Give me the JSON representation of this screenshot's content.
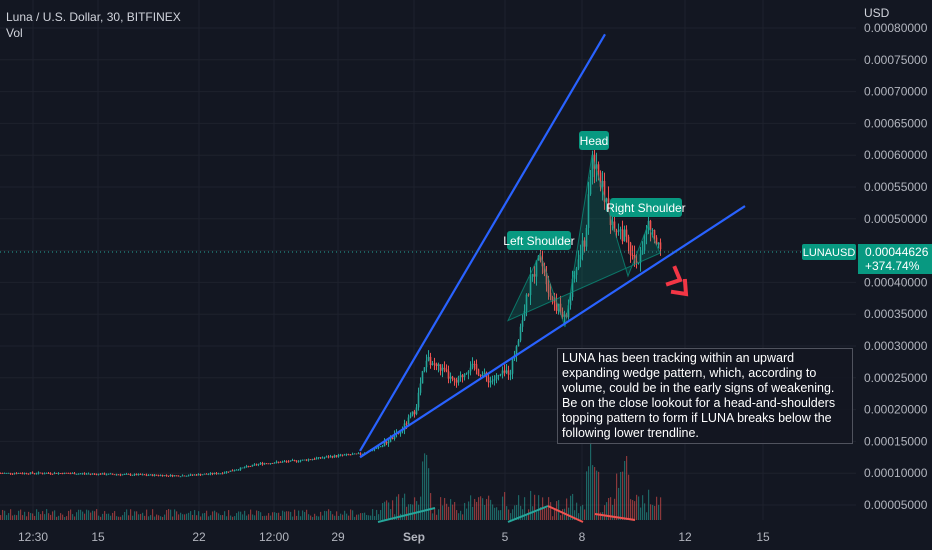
{
  "header": {
    "symbol_line": "Luna / U.S. Dollar, 30, BITFINEX",
    "sub_line": "Vol",
    "currency": "USD"
  },
  "annotation_text": "LUNA has been tracking within an upward expanding wedge pattern, which, according to volume, could be in the early signs of weakening. Be on the close lookout for a head-and-shoulders topping pattern to form if LUNA breaks below the following lower trendline.",
  "price_tag": {
    "symbol": "LUNAUSD",
    "price": "0.00044626",
    "change": "+374.74%"
  },
  "colors": {
    "background": "#131722",
    "up": "#26a69a",
    "down": "#ef5350",
    "trendline": "#2962ff",
    "label_bg": "#089981",
    "arrow": "#f23645"
  },
  "chart_data": {
    "type": "candlestick",
    "y_axis": {
      "range": [
        2e-05,
        0.00081
      ],
      "ticks": [
        "0.00080000",
        "0.00075000",
        "0.00070000",
        "0.00065000",
        "0.00060000",
        "0.00055000",
        "0.00050000",
        "0.00045000",
        "0.00040000",
        "0.00035000",
        "0.00030000",
        "0.00025000",
        "0.00020000",
        "0.00015000",
        "0.00010000",
        "0.00005000"
      ]
    },
    "x_axis": {
      "ticks": [
        "12:30",
        "15",
        "22",
        "12:00",
        "29",
        "Sep",
        "5",
        "8",
        "12",
        "15"
      ]
    },
    "price_path": [
      [
        0,
        0.0001
      ],
      [
        60,
        0.0001
      ],
      [
        120,
        9.8e-05
      ],
      [
        180,
        9.6e-05
      ],
      [
        220,
        0.0001
      ],
      [
        260,
        0.000115
      ],
      [
        300,
        0.00012
      ],
      [
        340,
        0.000128
      ],
      [
        360,
        0.00013
      ],
      [
        380,
        0.000142
      ],
      [
        400,
        0.000165
      ],
      [
        415,
        0.0002
      ],
      [
        425,
        0.00028
      ],
      [
        440,
        0.000265
      ],
      [
        455,
        0.00024
      ],
      [
        470,
        0.00027
      ],
      [
        490,
        0.000245
      ],
      [
        510,
        0.000262
      ],
      [
        520,
        0.00033
      ],
      [
        530,
        0.0004
      ],
      [
        540,
        0.000445
      ],
      [
        550,
        0.00038
      ],
      [
        565,
        0.00034
      ],
      [
        575,
        0.00042
      ],
      [
        585,
        0.00047
      ],
      [
        592,
        0.0006
      ],
      [
        600,
        0.00056
      ],
      [
        610,
        0.0005
      ],
      [
        625,
        0.00047
      ],
      [
        635,
        0.00042
      ],
      [
        648,
        0.00049
      ],
      [
        660,
        0.000446
      ]
    ],
    "pattern_labels": [
      "Left Shoulder",
      "Head",
      "Right Shoulder"
    ],
    "trendlines": [
      {
        "name": "upper",
        "from": [
          360,
          0.000135
        ],
        "to": [
          605,
          0.00079
        ]
      },
      {
        "name": "lower",
        "from": [
          360,
          0.000125
        ],
        "to": [
          745,
          0.00052
        ]
      }
    ],
    "volume_trend_lines": [
      {
        "color": "up",
        "from": [
          378,
          0.0
        ],
        "to": [
          435,
          0.0
        ]
      },
      {
        "color": "up",
        "from": [
          508,
          0.0
        ],
        "to": [
          548,
          0.0
        ]
      },
      {
        "color": "down",
        "from": [
          548,
          0.0
        ],
        "to": [
          583,
          0.0
        ]
      },
      {
        "color": "down",
        "from": [
          595,
          0.0
        ],
        "to": [
          635,
          0.0
        ]
      }
    ],
    "last_price": 0.00044626
  }
}
